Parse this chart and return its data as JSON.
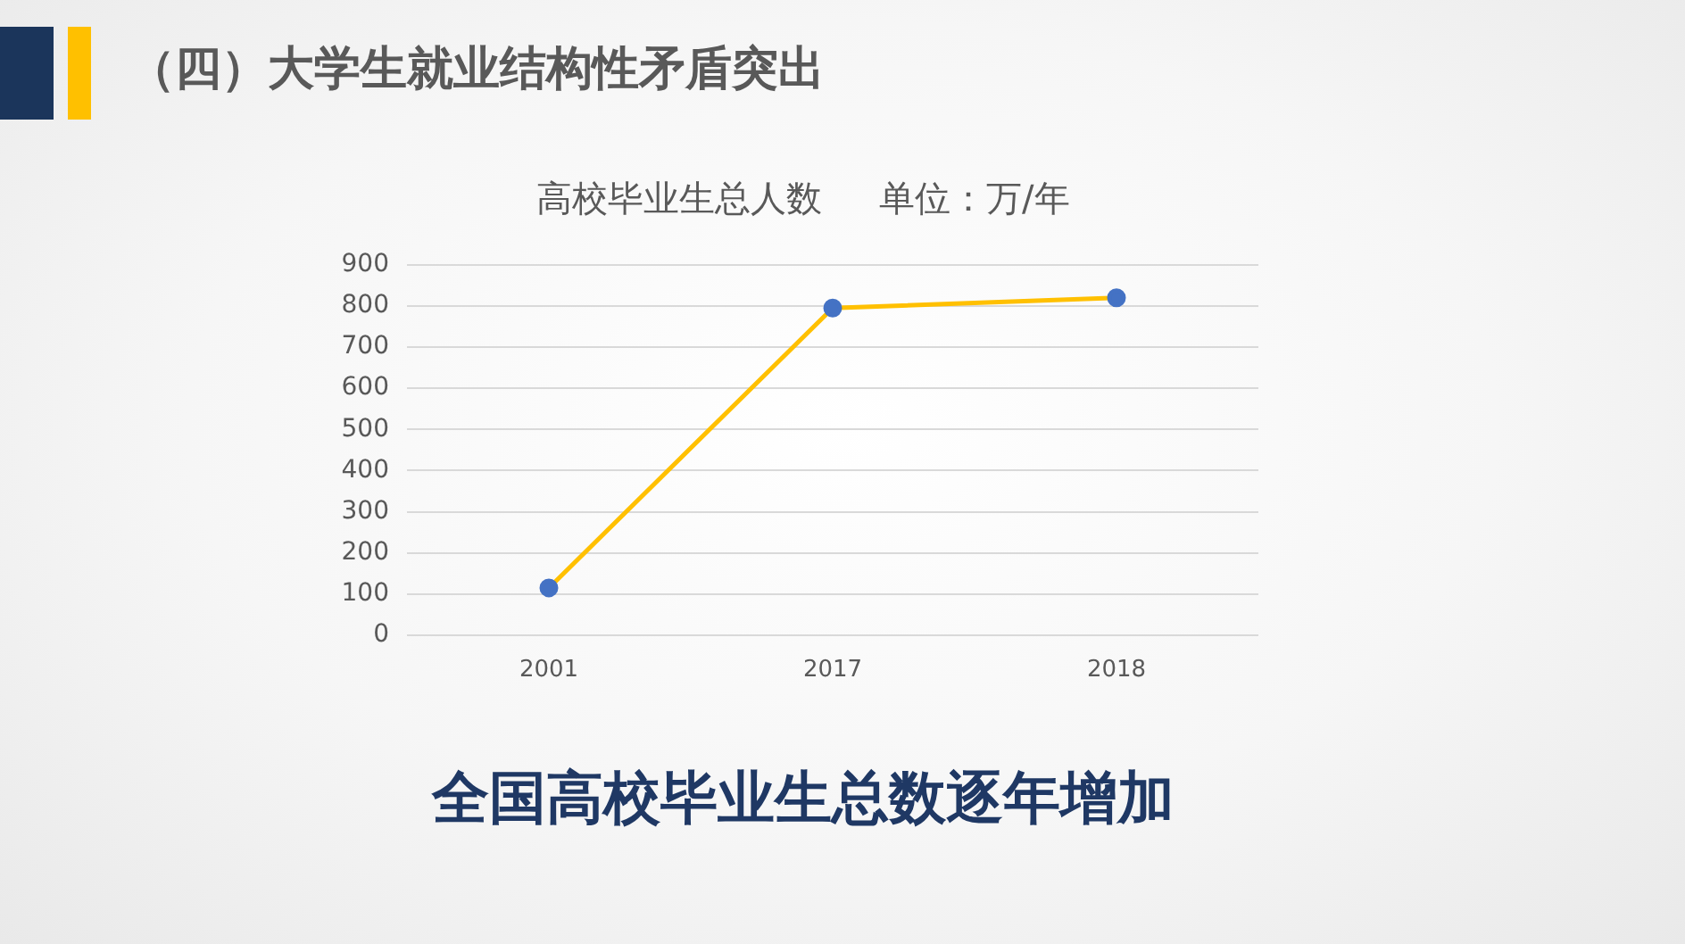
{
  "chart_data": {
    "type": "line",
    "title": "（四）大学生就业结构性矛盾突出",
    "subtitle": "高校毕业生总人数     单位：万/年",
    "annotations": [
      "全国高校毕业生总数逐年增加"
    ],
    "categories": [
      "2001",
      "2017",
      "2018"
    ],
    "series": [
      {
        "color": "#ffc000",
        "colors": [
          "#4472c4",
          "#4472c4",
          "#4472c4"
        ],
        "values": [
          115,
          795,
          820
        ]
      }
    ],
    "ylim": [
      0,
      900
    ],
    "yticks": [
      0,
      100,
      200,
      300,
      400,
      500,
      600,
      700,
      800,
      900
    ],
    "grid": "y",
    "legend": false,
    "marker": "circle",
    "line_style": "solid"
  }
}
